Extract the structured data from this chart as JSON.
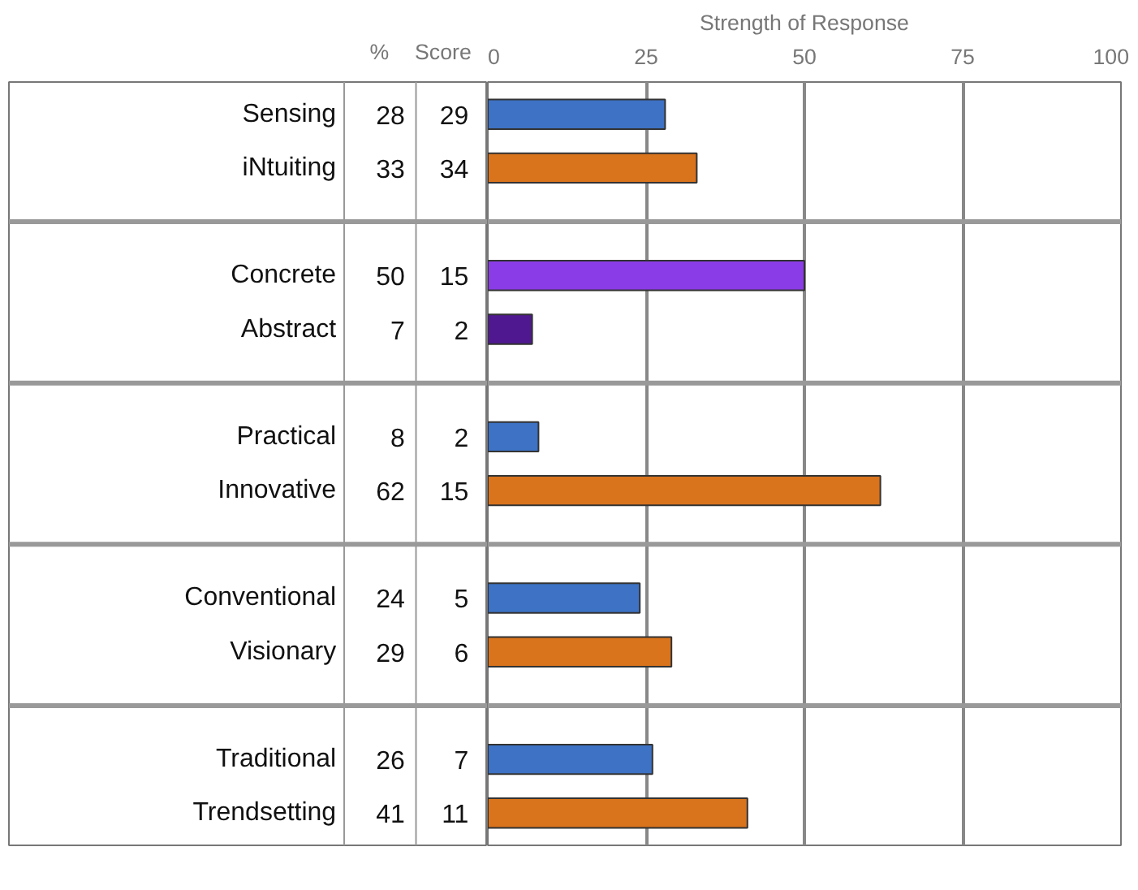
{
  "chart_data": {
    "type": "bar",
    "orientation": "horizontal",
    "xlabel": "Strength of Response",
    "categories": [
      "Sensing",
      "iNtuiting",
      null,
      "Concrete",
      "Abstract",
      null,
      "Practical",
      "Innovative",
      null,
      "Conventional",
      "Visionary",
      null,
      "Traditional",
      "Trendsetting"
    ],
    "series": [
      {
        "values": [
          28,
          33,
          null,
          50,
          7,
          null,
          8,
          62,
          null,
          24,
          29,
          null,
          26,
          41
        ],
        "colors": [
          "#3d72c4",
          "#d9731c",
          null,
          "#8a3ce6",
          "#4f1890",
          null,
          "#3d72c4",
          "#d9731c",
          null,
          "#3d72c4",
          "#d9731c",
          null,
          "#3d72c4",
          "#d9731c"
        ]
      }
    ],
    "data_labels": true,
    "annotations": [
      "%",
      "Score",
      "29",
      "34",
      "15",
      "2",
      "2",
      "15",
      "5",
      "6",
      "7",
      "11"
    ],
    "xlim": [
      0,
      100
    ],
    "xticks": [
      0,
      25,
      50,
      75,
      100
    ],
    "grid": "x"
  }
}
